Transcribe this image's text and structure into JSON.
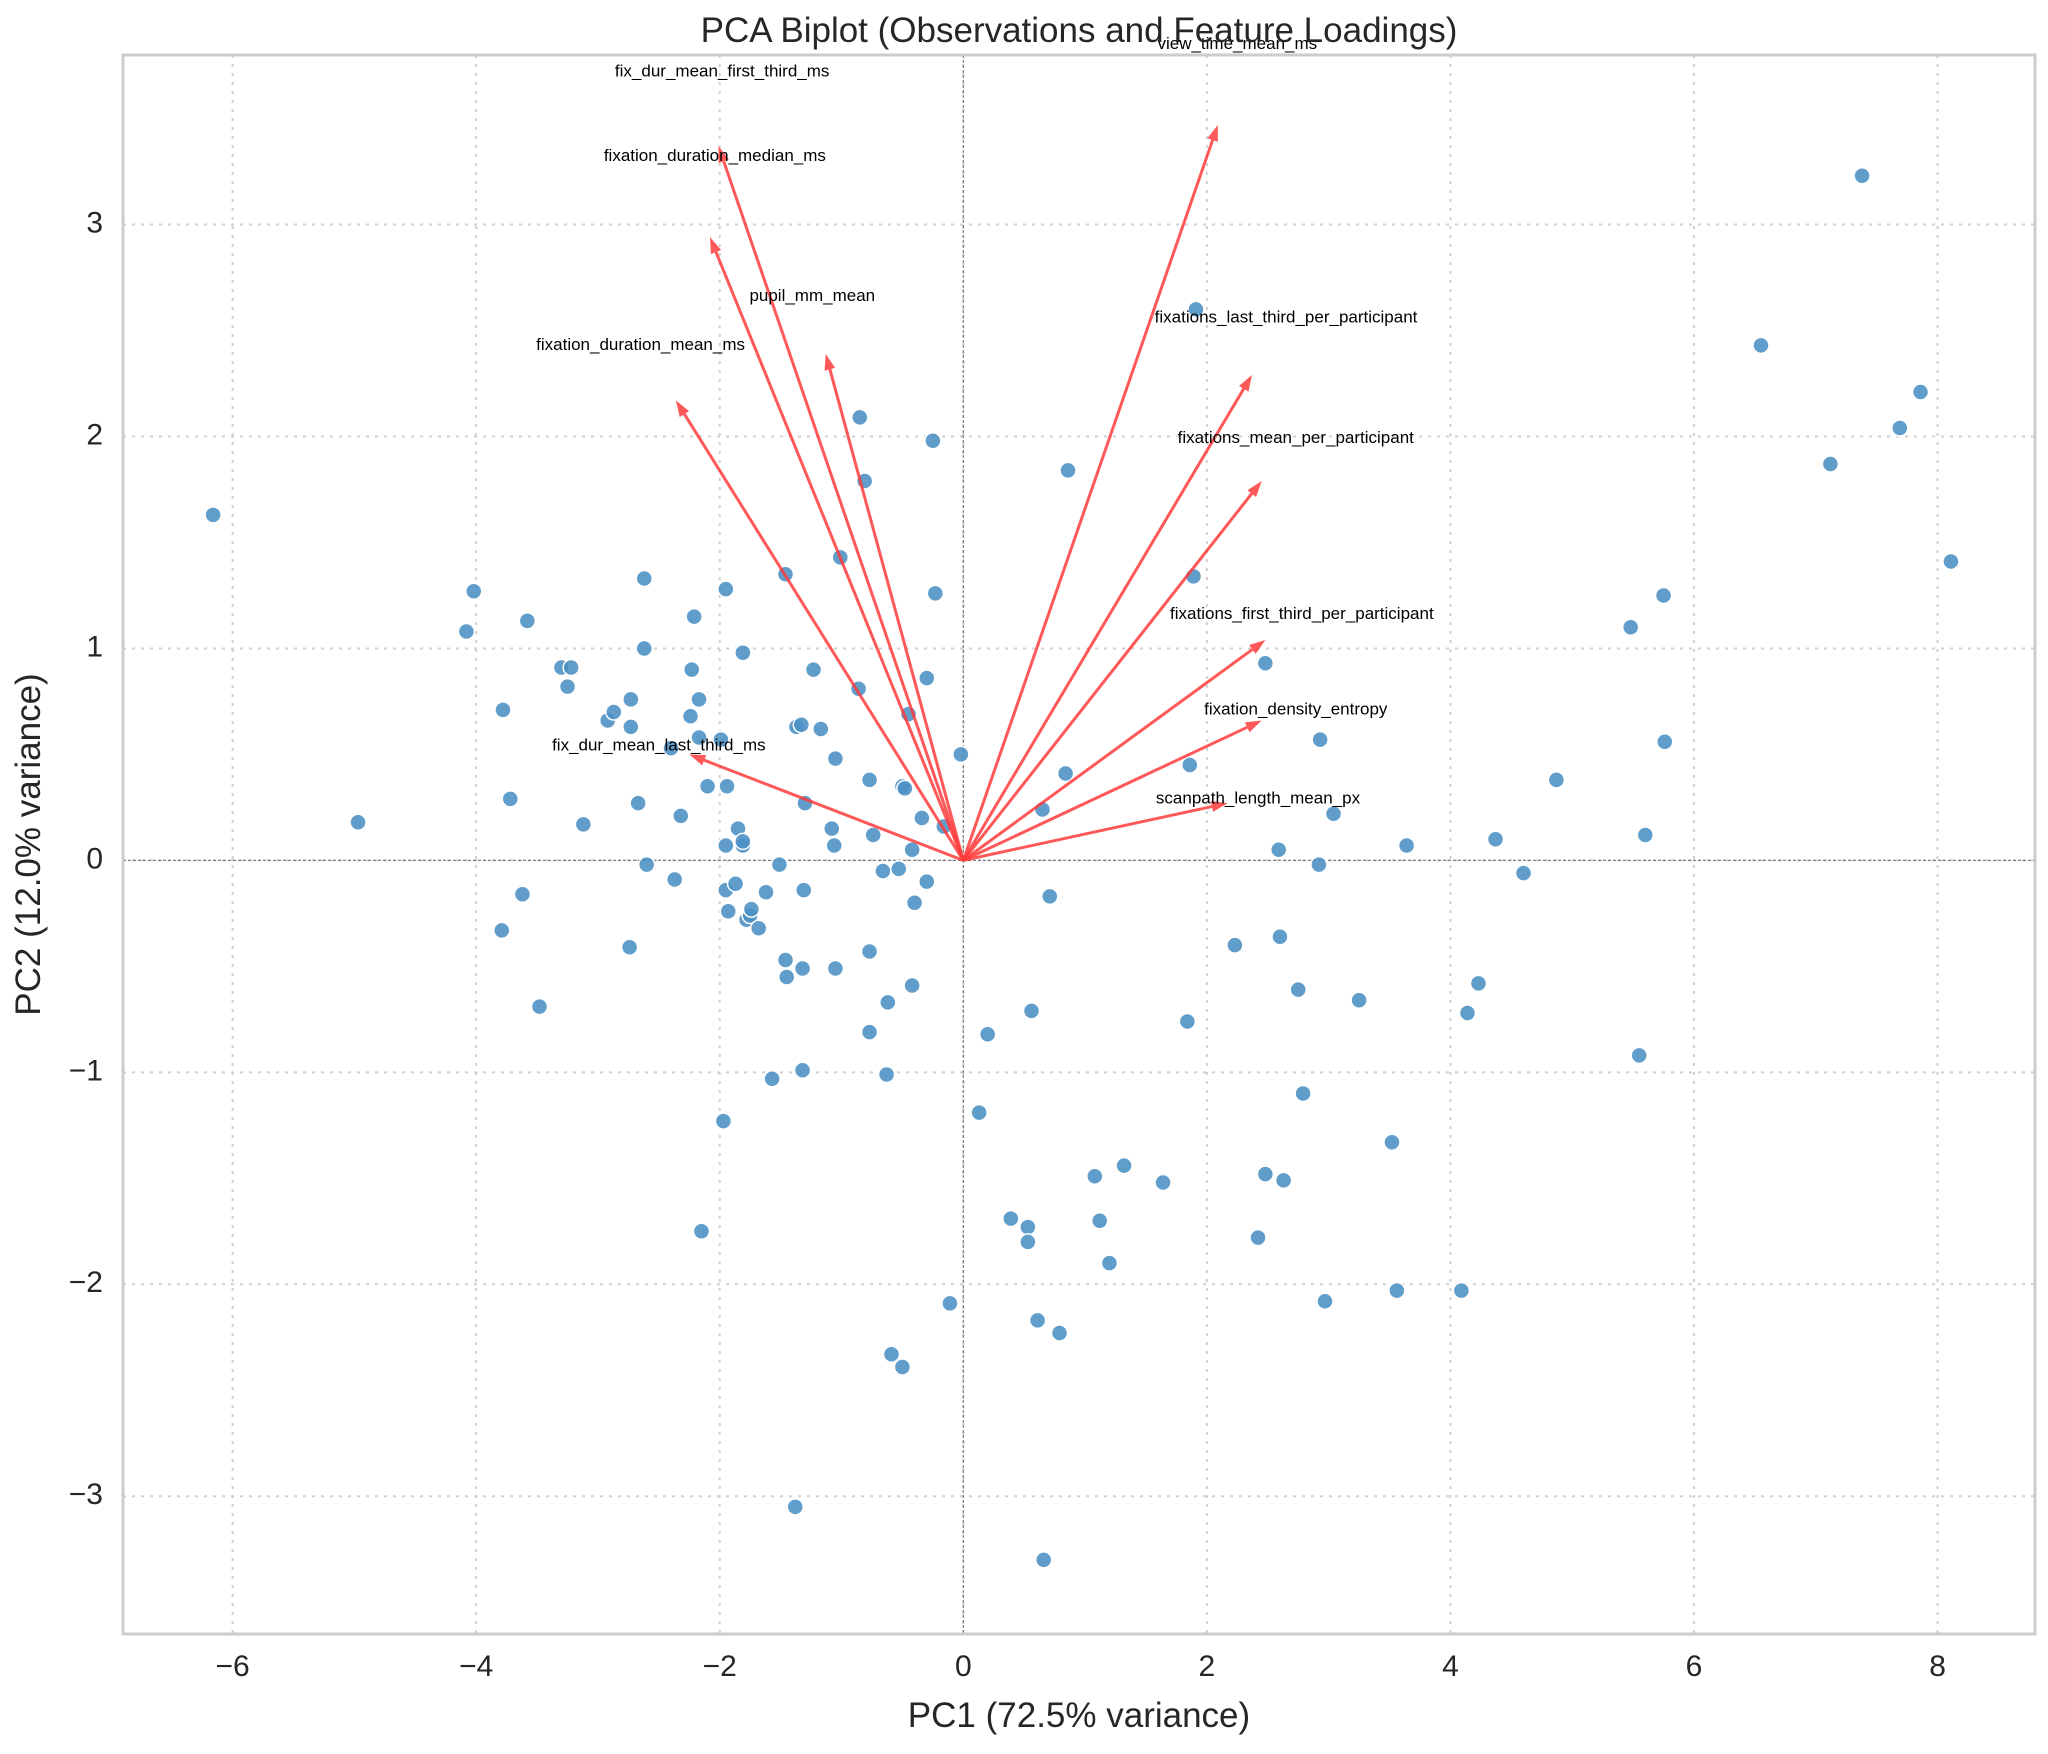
{
  "chart_data": {
    "type": "scatter",
    "title": "PCA Biplot (Observations and Feature Loadings)",
    "xlabel": "PC1 (72.5% variance)",
    "ylabel": "PC2 (12.0% variance)",
    "xlim": [
      -6.9,
      8.8
    ],
    "ylim": [
      -3.65,
      3.8
    ],
    "xticks": [
      -6,
      -4,
      -2,
      0,
      2,
      4,
      6,
      8
    ],
    "yticks": [
      -3,
      -2,
      -1,
      0,
      1,
      2,
      3
    ],
    "xtick_labels": [
      "−6",
      "−4",
      "−2",
      "0",
      "2",
      "4",
      "6",
      "8"
    ],
    "ytick_labels": [
      "−3",
      "−2",
      "−1",
      "0",
      "1",
      "2",
      "3"
    ],
    "grid": true,
    "colors": {
      "points": "#4a8fc4",
      "arrows": "#ff3b3b",
      "zero_lines": "#7f7f7f",
      "grid": "#d0d0d0",
      "frame": "#cccccc"
    },
    "points": [
      [
        -6.16,
        1.63
      ],
      [
        -4.97,
        0.18
      ],
      [
        -4.08,
        1.08
      ],
      [
        -4.02,
        1.27
      ],
      [
        -3.78,
        0.71
      ],
      [
        -3.79,
        -0.33
      ],
      [
        -3.72,
        0.29
      ],
      [
        -3.62,
        -0.16
      ],
      [
        -3.58,
        1.13
      ],
      [
        -3.48,
        -0.69
      ],
      [
        -3.3,
        0.91
      ],
      [
        -3.25,
        0.82
      ],
      [
        -3.22,
        0.91
      ],
      [
        -3.12,
        0.17
      ],
      [
        -2.92,
        0.66
      ],
      [
        -2.87,
        0.7
      ],
      [
        -2.74,
        -0.41
      ],
      [
        -2.73,
        0.76
      ],
      [
        -2.73,
        0.63
      ],
      [
        -2.67,
        0.27
      ],
      [
        -2.62,
        1.33
      ],
      [
        -2.62,
        1.0
      ],
      [
        -2.6,
        -0.02
      ],
      [
        -2.4,
        0.53
      ],
      [
        -2.37,
        -0.09
      ],
      [
        -2.32,
        0.21
      ],
      [
        -2.24,
        0.68
      ],
      [
        -2.23,
        0.9
      ],
      [
        -2.21,
        1.15
      ],
      [
        -2.17,
        0.58
      ],
      [
        -2.17,
        0.76
      ],
      [
        -2.15,
        -1.75
      ],
      [
        -2.1,
        0.35
      ],
      [
        -1.99,
        0.57
      ],
      [
        -1.97,
        -1.23
      ],
      [
        -1.95,
        1.28
      ],
      [
        -1.95,
        0.07
      ],
      [
        -1.95,
        -0.14
      ],
      [
        -1.94,
        0.35
      ],
      [
        -1.93,
        -0.24
      ],
      [
        -1.87,
        -0.11
      ],
      [
        -1.85,
        0.15
      ],
      [
        -1.81,
        0.98
      ],
      [
        -1.81,
        0.07
      ],
      [
        -1.81,
        0.09
      ],
      [
        -1.78,
        -0.28
      ],
      [
        -1.75,
        -0.26
      ],
      [
        -1.74,
        -0.23
      ],
      [
        -1.68,
        -0.32
      ],
      [
        -1.62,
        -0.15
      ],
      [
        -1.57,
        -1.03
      ],
      [
        -1.51,
        -0.02
      ],
      [
        -1.46,
        1.35
      ],
      [
        -1.46,
        -0.47
      ],
      [
        -1.45,
        -0.55
      ],
      [
        -1.38,
        -3.05
      ],
      [
        -1.37,
        0.63
      ],
      [
        -1.33,
        0.64
      ],
      [
        -1.32,
        -0.51
      ],
      [
        -1.32,
        -0.99
      ],
      [
        -1.31,
        -0.14
      ],
      [
        -1.3,
        0.27
      ],
      [
        -1.23,
        0.9
      ],
      [
        -1.17,
        0.62
      ],
      [
        -1.08,
        0.15
      ],
      [
        -1.06,
        0.07
      ],
      [
        -1.05,
        0.48
      ],
      [
        -1.05,
        -0.51
      ],
      [
        -1.01,
        1.43
      ],
      [
        -0.86,
        0.81
      ],
      [
        -0.85,
        2.09
      ],
      [
        -0.81,
        1.79
      ],
      [
        -0.77,
        -0.43
      ],
      [
        -0.77,
        0.38
      ],
      [
        -0.77,
        -0.81
      ],
      [
        -0.74,
        0.12
      ],
      [
        -0.66,
        -0.05
      ],
      [
        -0.63,
        -1.01
      ],
      [
        -0.62,
        -0.67
      ],
      [
        -0.59,
        -2.33
      ],
      [
        -0.53,
        -0.04
      ],
      [
        -0.5,
        -2.39
      ],
      [
        -0.5,
        0.35
      ],
      [
        -0.48,
        0.34
      ],
      [
        -0.45,
        0.69
      ],
      [
        -0.42,
        0.05
      ],
      [
        -0.42,
        -0.59
      ],
      [
        -0.4,
        -0.2
      ],
      [
        -0.34,
        0.2
      ],
      [
        -0.3,
        -0.1
      ],
      [
        -0.3,
        0.86
      ],
      [
        -0.25,
        1.98
      ],
      [
        -0.23,
        1.26
      ],
      [
        -0.16,
        0.16
      ],
      [
        -0.11,
        -2.09
      ],
      [
        -0.02,
        0.5
      ],
      [
        0.13,
        -1.19
      ],
      [
        0.2,
        -0.82
      ],
      [
        0.39,
        -1.69
      ],
      [
        0.53,
        -1.73
      ],
      [
        0.53,
        -1.8
      ],
      [
        0.56,
        -0.71
      ],
      [
        0.61,
        -2.17
      ],
      [
        0.65,
        0.24
      ],
      [
        0.66,
        -3.3
      ],
      [
        0.71,
        -0.17
      ],
      [
        0.79,
        -2.23
      ],
      [
        0.84,
        0.41
      ],
      [
        0.86,
        1.84
      ],
      [
        1.08,
        -1.49
      ],
      [
        1.12,
        -1.7
      ],
      [
        1.2,
        -1.9
      ],
      [
        1.32,
        -1.44
      ],
      [
        1.64,
        -1.52
      ],
      [
        1.84,
        -0.76
      ],
      [
        1.86,
        0.45
      ],
      [
        1.89,
        1.34
      ],
      [
        1.91,
        2.6
      ],
      [
        2.23,
        -0.4
      ],
      [
        2.42,
        -1.78
      ],
      [
        2.48,
        0.93
      ],
      [
        2.48,
        -1.48
      ],
      [
        2.59,
        0.05
      ],
      [
        2.6,
        -0.36
      ],
      [
        2.63,
        -1.51
      ],
      [
        2.75,
        -0.61
      ],
      [
        2.79,
        -1.1
      ],
      [
        2.92,
        -0.02
      ],
      [
        2.93,
        0.57
      ],
      [
        2.97,
        -2.08
      ],
      [
        3.04,
        0.22
      ],
      [
        3.25,
        -0.66
      ],
      [
        3.52,
        -1.33
      ],
      [
        3.56,
        -2.03
      ],
      [
        3.64,
        0.07
      ],
      [
        4.09,
        -2.03
      ],
      [
        4.14,
        -0.72
      ],
      [
        4.23,
        -0.58
      ],
      [
        4.37,
        0.1
      ],
      [
        4.6,
        -0.06
      ],
      [
        4.87,
        0.38
      ],
      [
        5.48,
        1.1
      ],
      [
        5.55,
        -0.92
      ],
      [
        5.6,
        0.12
      ],
      [
        5.75,
        1.25
      ],
      [
        5.76,
        0.56
      ],
      [
        6.55,
        2.43
      ],
      [
        7.12,
        1.87
      ],
      [
        7.38,
        3.23
      ],
      [
        7.69,
        2.04
      ],
      [
        7.86,
        2.21
      ],
      [
        8.11,
        1.41
      ]
    ],
    "loadings": [
      {
        "name": "view_time_mean_ms",
        "x": 2.09,
        "y": 3.47,
        "label_x": 2.25,
        "label_y": 3.85
      },
      {
        "name": "fix_dur_mean_first_third_ms",
        "x": -2.01,
        "y": 3.37,
        "label_x": -1.98,
        "label_y": 3.72
      },
      {
        "name": "fixation_duration_median_ms",
        "x": -2.08,
        "y": 2.94,
        "label_x": -2.04,
        "label_y": 3.32
      },
      {
        "name": "pupil_mm_mean",
        "x": -1.13,
        "y": 2.39,
        "label_x": -1.24,
        "label_y": 2.66
      },
      {
        "name": "fixations_last_third_per_participant",
        "x": 2.37,
        "y": 2.29,
        "label_x": 2.65,
        "label_y": 2.56
      },
      {
        "name": "fixation_duration_mean_ms",
        "x": -2.36,
        "y": 2.17,
        "label_x": -2.65,
        "label_y": 2.43
      },
      {
        "name": "fixations_mean_per_participant",
        "x": 2.45,
        "y": 1.79,
        "label_x": 2.73,
        "label_y": 1.99
      },
      {
        "name": "fixations_first_third_per_participant",
        "x": 2.48,
        "y": 1.04,
        "label_x": 2.78,
        "label_y": 1.16
      },
      {
        "name": "fixation_density_entropy",
        "x": 2.45,
        "y": 0.66,
        "label_x": 2.73,
        "label_y": 0.71
      },
      {
        "name": "fix_dur_mean_last_third_ms",
        "x": -2.25,
        "y": 0.5,
        "label_x": -2.5,
        "label_y": 0.54
      },
      {
        "name": "scanpath_length_mean_px",
        "x": 2.17,
        "y": 0.27,
        "label_x": 2.42,
        "label_y": 0.29
      }
    ]
  }
}
